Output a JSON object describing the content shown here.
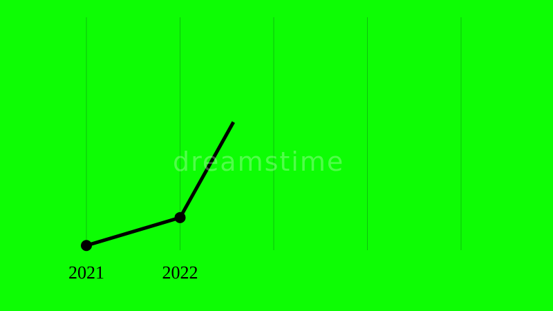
{
  "chart_data": {
    "type": "line",
    "title": "",
    "xlabel": "",
    "ylabel": "",
    "x_gridlines": [
      2021,
      2022,
      2023,
      2024,
      2025
    ],
    "tick_labels": [
      "2021",
      "2022"
    ],
    "xlim": [
      2021,
      2025
    ],
    "ylim": [
      0,
      100
    ],
    "grid": "vertical",
    "series": [
      {
        "x": [
          2021,
          2022,
          2022.57
        ],
        "y": [
          2,
          14,
          55
        ],
        "markers": [
          true,
          true,
          false
        ]
      }
    ],
    "colors": {
      "background": "#0dfd04",
      "line": "#000000",
      "grid": "#0a9a10"
    }
  },
  "watermark": "dreamstime"
}
